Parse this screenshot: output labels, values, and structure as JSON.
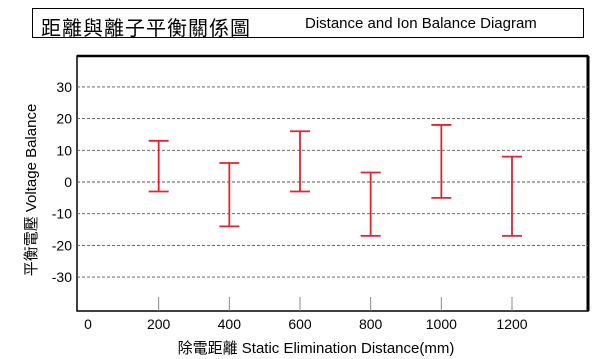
{
  "title": {
    "zh": "距離與離子平衡關係圖",
    "en": "Distance and Ion Balance Diagram"
  },
  "chart_data": {
    "type": "errorbar",
    "xlabel": "除電距離 Static Elimination Distance(mm)",
    "ylabel": "平衡電壓 Voltage Balance",
    "xlim": [
      0,
      1400
    ],
    "ylim": [
      -40,
      40
    ],
    "x_ticks": [
      0,
      200,
      400,
      600,
      800,
      1000,
      1200
    ],
    "y_ticks": [
      30,
      20,
      10,
      0,
      -10,
      -20,
      -30
    ],
    "grid": "horizontal dashed",
    "series": [
      {
        "color": "#e8202f",
        "points": [
          {
            "x": 200,
            "high": 13,
            "low": -3
          },
          {
            "x": 400,
            "high": 6,
            "low": -14
          },
          {
            "x": 600,
            "high": 16,
            "low": -3
          },
          {
            "x": 800,
            "high": 3,
            "low": -17
          },
          {
            "x": 1000,
            "high": 18,
            "low": -5
          },
          {
            "x": 1200,
            "high": 8,
            "low": -17
          }
        ]
      }
    ]
  }
}
